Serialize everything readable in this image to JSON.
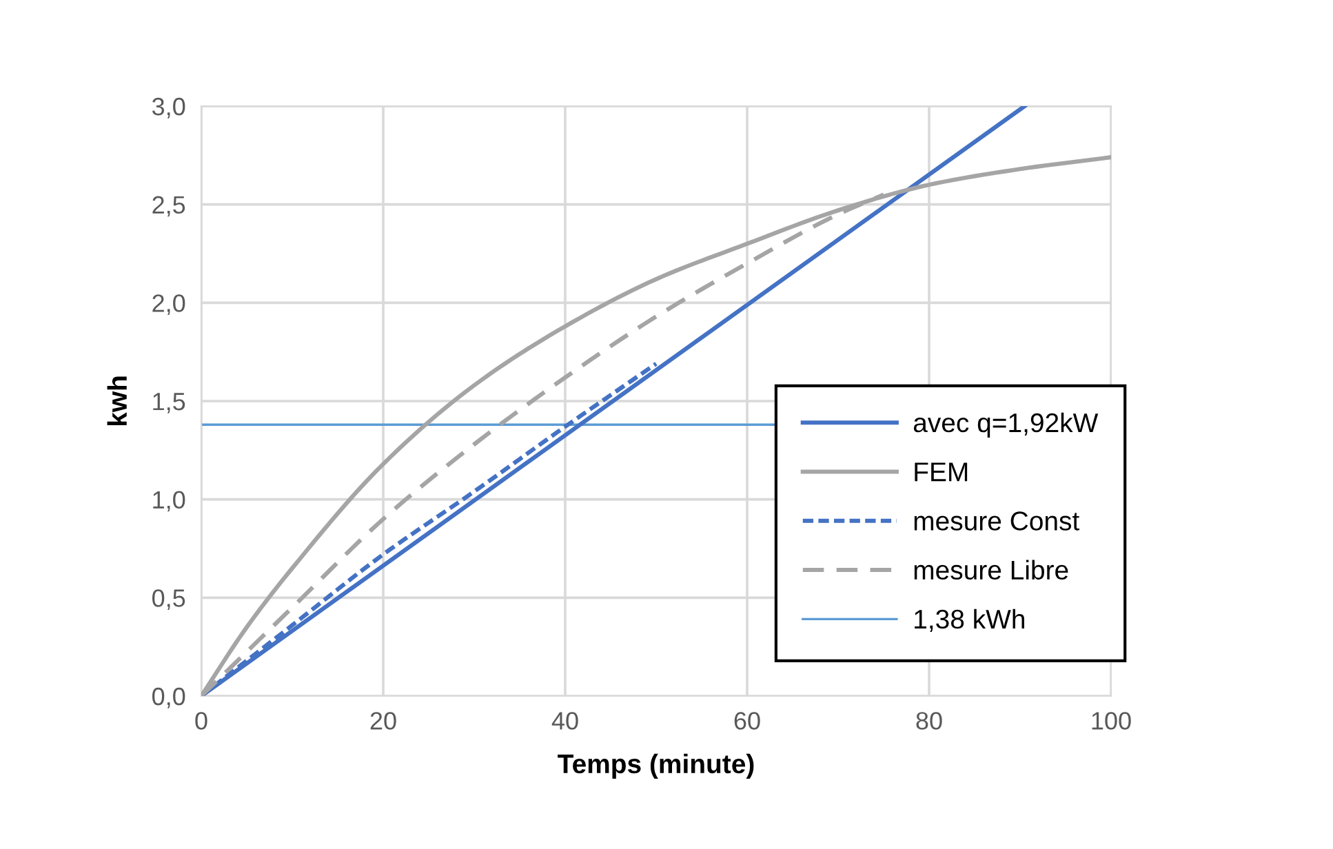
{
  "chart_data": {
    "type": "line",
    "xlabel": "Temps (minute)",
    "ylabel": "kwh",
    "xlim": [
      0,
      100
    ],
    "xticks": [
      0,
      20,
      40,
      60,
      80,
      100
    ],
    "ylim": [
      0,
      3.0
    ],
    "yticks": [
      {
        "value": 0,
        "label": "0,0"
      },
      {
        "value": 0.5,
        "label": "0,5"
      },
      {
        "value": 1.0,
        "label": "1,0"
      },
      {
        "value": 1.5,
        "label": "1,5"
      },
      {
        "value": 2.0,
        "label": "2,0"
      },
      {
        "value": 2.5,
        "label": "2,5"
      },
      {
        "value": 3.0,
        "label": "3,0"
      }
    ],
    "grid": true,
    "legend": "right",
    "marker": "none",
    "series": [
      {
        "name": "avec q=1,92kW",
        "color": "#4472c4",
        "line_style": "solid",
        "x": [
          0,
          90.5
        ],
        "values": [
          0,
          3.0
        ]
      },
      {
        "name": "FEM",
        "color": "#a5a5a5",
        "line_style": "solid",
        "x": [
          0,
          5,
          10,
          20,
          30,
          40,
          50,
          60,
          70,
          80,
          90,
          100
        ],
        "values": [
          0,
          0.35,
          0.65,
          1.18,
          1.58,
          1.88,
          2.12,
          2.3,
          2.47,
          2.6,
          2.68,
          2.74
        ]
      },
      {
        "name": "mesure Const",
        "color": "#4472c4",
        "line_style": "dotted",
        "x": [
          0,
          10,
          20,
          30,
          40,
          50
        ],
        "values": [
          0,
          0.36,
          0.72,
          1.04,
          1.37,
          1.69
        ]
      },
      {
        "name": "mesure Libre",
        "color": "#a5a5a5",
        "line_style": "dashed",
        "x": [
          0,
          10,
          20,
          30,
          40,
          50,
          60,
          70,
          75
        ],
        "values": [
          0,
          0.45,
          0.9,
          1.28,
          1.62,
          1.93,
          2.2,
          2.45,
          2.55
        ]
      }
    ],
    "ref_lines": [
      {
        "axis": "y",
        "value": 1.38,
        "label": "1,38 kWh",
        "color": "#5b9bd5",
        "line_style": "solid"
      }
    ]
  }
}
